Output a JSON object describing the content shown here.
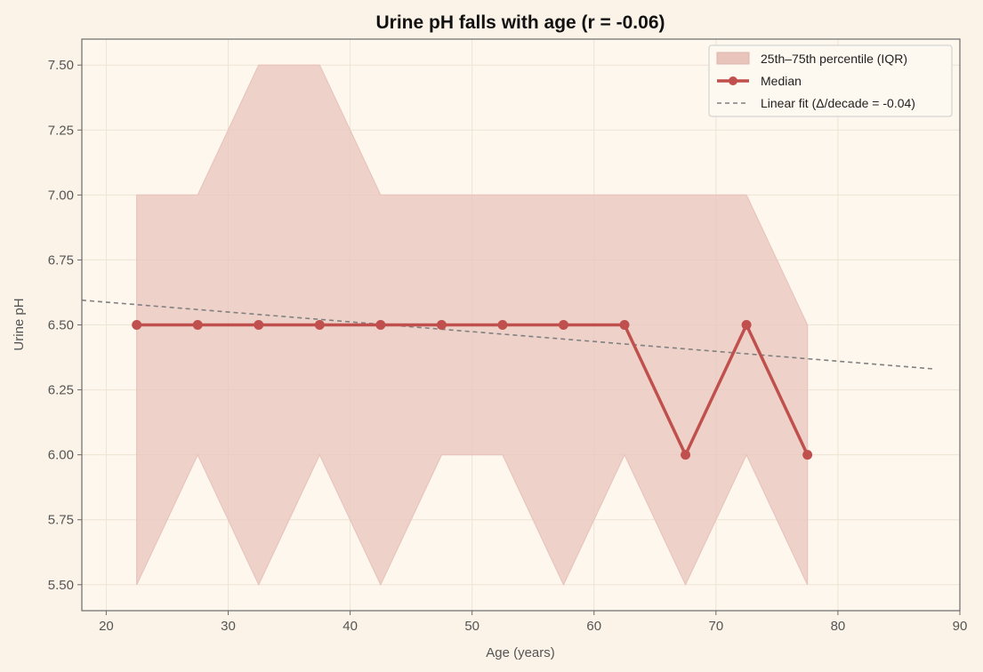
{
  "chart_data": {
    "type": "line",
    "title": "Urine pH falls with age (r = -0.06)",
    "xlabel": "Age (years)",
    "ylabel": "Urine pH",
    "xlim": [
      18,
      90
    ],
    "ylim": [
      5.4,
      7.6
    ],
    "x_ticks": [
      20,
      30,
      40,
      50,
      60,
      70,
      80,
      90
    ],
    "y_ticks": [
      "5.50",
      "5.75",
      "6.00",
      "6.25",
      "6.50",
      "6.75",
      "7.00",
      "7.25",
      "7.50"
    ],
    "grid": true,
    "legend_position": "top-right",
    "x": [
      22.5,
      27.5,
      32.5,
      37.5,
      42.5,
      47.5,
      52.5,
      57.5,
      62.5,
      67.5,
      72.5,
      77.5
    ],
    "series": [
      {
        "name": "Median",
        "values": [
          6.5,
          6.5,
          6.5,
          6.5,
          6.5,
          6.5,
          6.5,
          6.5,
          6.5,
          6.0,
          6.5,
          6.0
        ],
        "color": "#c0504d"
      }
    ],
    "band": {
      "name": "25th–75th percentile (IQR)",
      "lower": [
        5.5,
        6.0,
        5.5,
        6.0,
        5.5,
        6.0,
        6.0,
        5.5,
        6.0,
        5.5,
        6.0,
        5.5
      ],
      "upper": [
        7.0,
        7.0,
        7.5,
        7.5,
        7.0,
        7.0,
        7.0,
        7.0,
        7.0,
        7.0,
        7.0,
        6.5
      ],
      "color": "#e8c4bc"
    },
    "fit": {
      "name": "Linear fit (Δ/decade = -0.04)",
      "x": [
        18,
        88
      ],
      "y": [
        6.595,
        6.33
      ],
      "color": "#808080"
    }
  }
}
